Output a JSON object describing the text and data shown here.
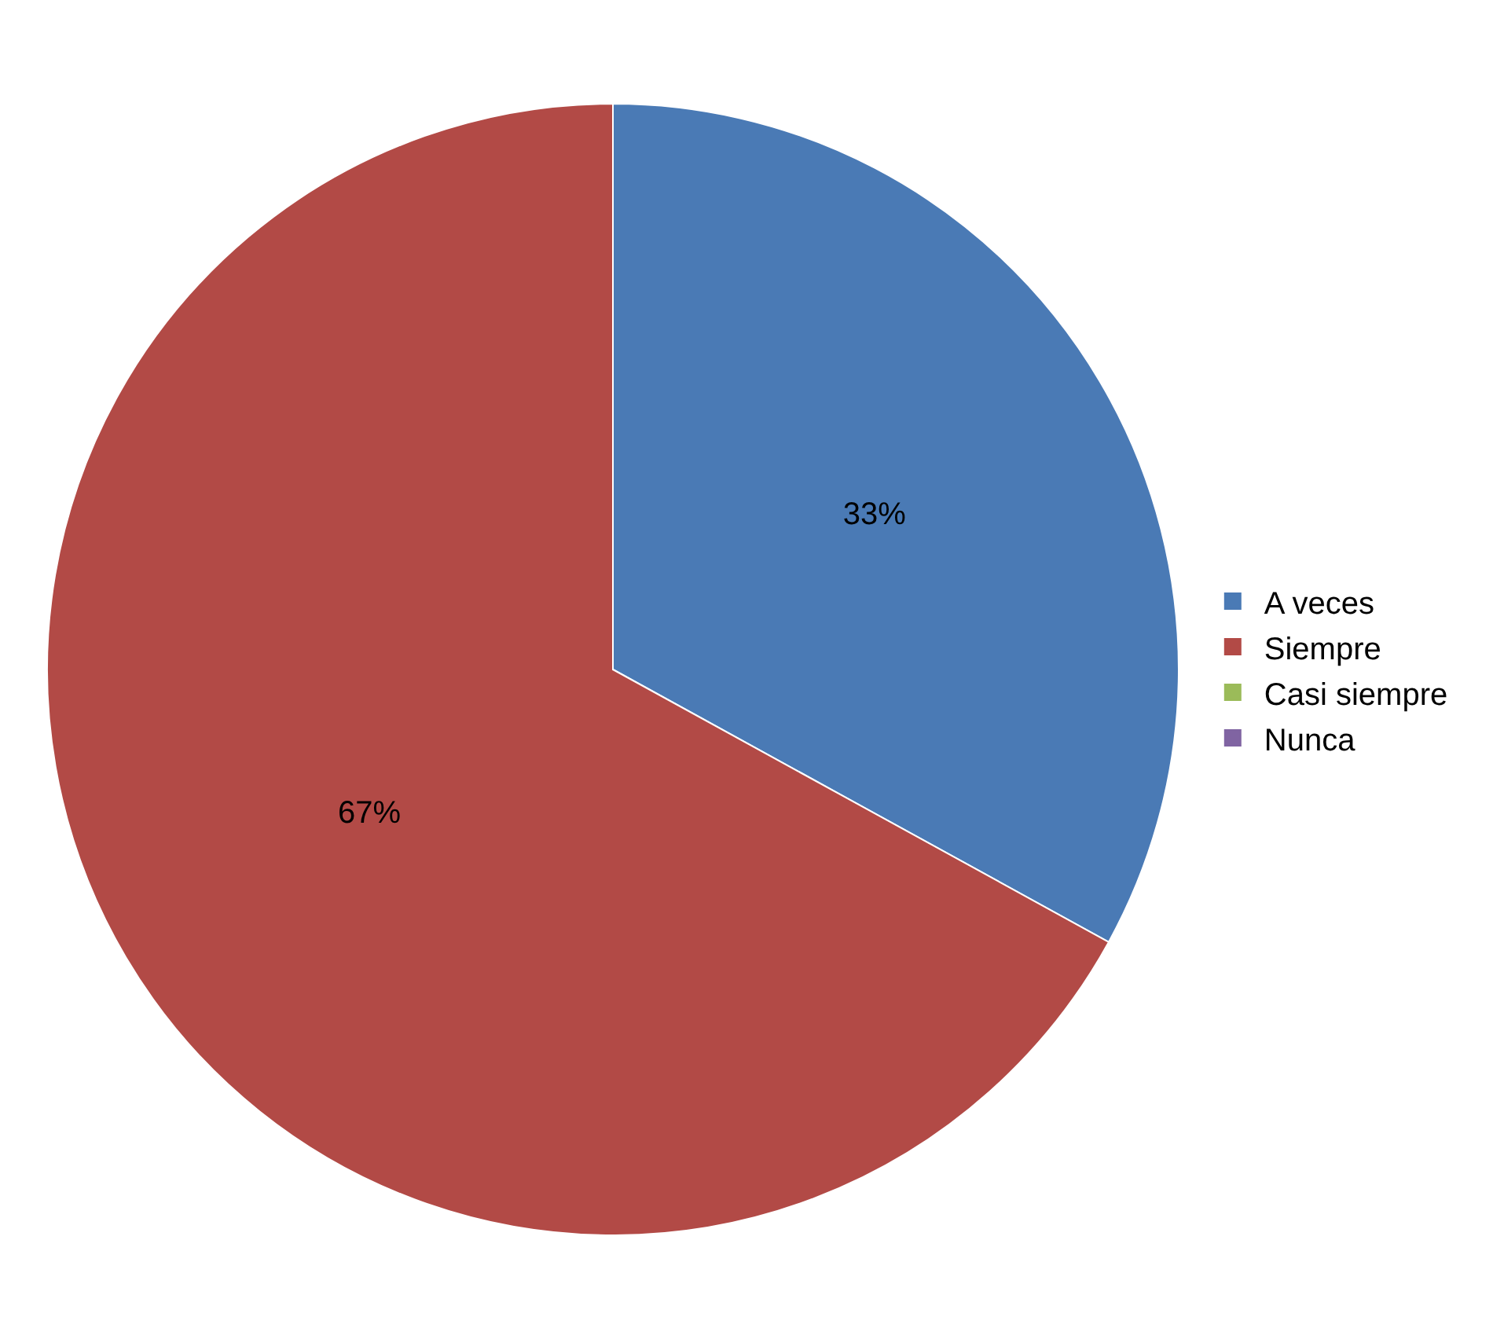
{
  "chart_data": {
    "type": "pie",
    "categories": [
      "A veces",
      "Siempre",
      "Casi siempre",
      "Nunca"
    ],
    "values": [
      33,
      67,
      0,
      0
    ],
    "colors": [
      "#4a7ab5",
      "#b24a46",
      "#9bbb59",
      "#8064a2"
    ],
    "value_labels": [
      "33%",
      "67%",
      null,
      null
    ],
    "legend": "right"
  }
}
